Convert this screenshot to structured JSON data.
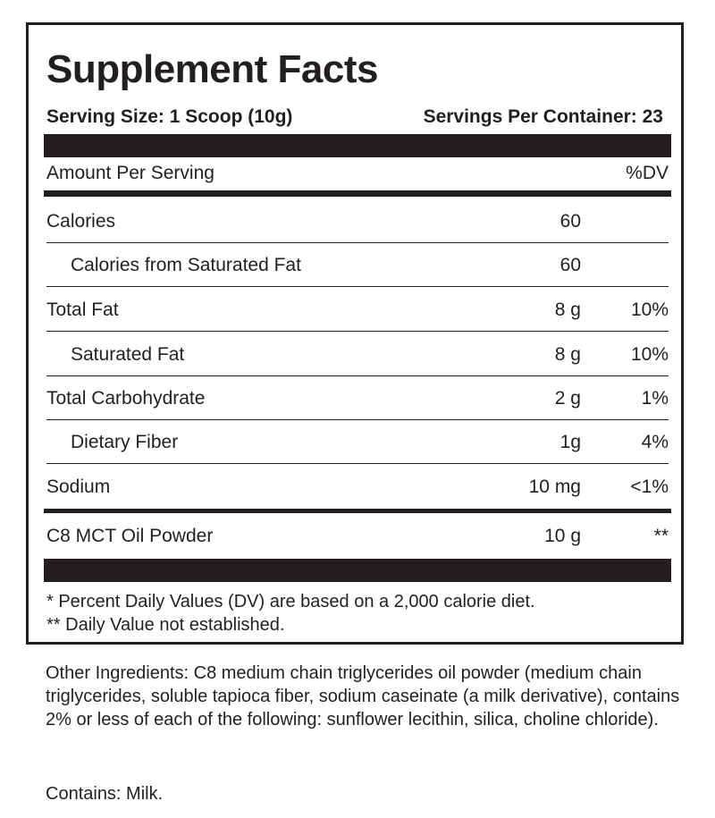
{
  "label": {
    "title": "Supplement Facts",
    "serving_size": "Serving Size: 1 Scoop (10g)",
    "servings_per_container": "Servings Per Container: 23",
    "amount_per_serving": "Amount Per Serving",
    "dv_header": "%DV",
    "rows": [
      {
        "name": "Calories",
        "amount": "60",
        "dv": ""
      },
      {
        "name": "Calories from Saturated Fat",
        "amount": "60",
        "dv": ""
      },
      {
        "name": "Total Fat",
        "amount": "8 g",
        "dv": "10%"
      },
      {
        "name": "Saturated Fat",
        "amount": "8 g",
        "dv": "10%"
      },
      {
        "name": "Total Carbohydrate",
        "amount": "2 g",
        "dv": "1%"
      },
      {
        "name": "Dietary Fiber",
        "amount": "1g",
        "dv": "4%"
      },
      {
        "name": "Sodium",
        "amount": "10 mg",
        "dv": "<1%"
      },
      {
        "name": "C8 MCT Oil Powder",
        "amount": "10 g",
        "dv": "**"
      }
    ],
    "footnote_1": "* Percent Daily Values (DV) are based on a 2,000 calorie diet.",
    "footnote_2": "** Daily Value not established."
  },
  "other_ingredients": "Other Ingredients: C8 medium chain triglycerides oil powder (medium chain triglycerides, soluble tapioca fiber, sodium caseinate (a milk derivative), contains 2% or less of each of the following: sunflower lecithin, silica, choline chloride).",
  "contains": "Contains: Milk."
}
